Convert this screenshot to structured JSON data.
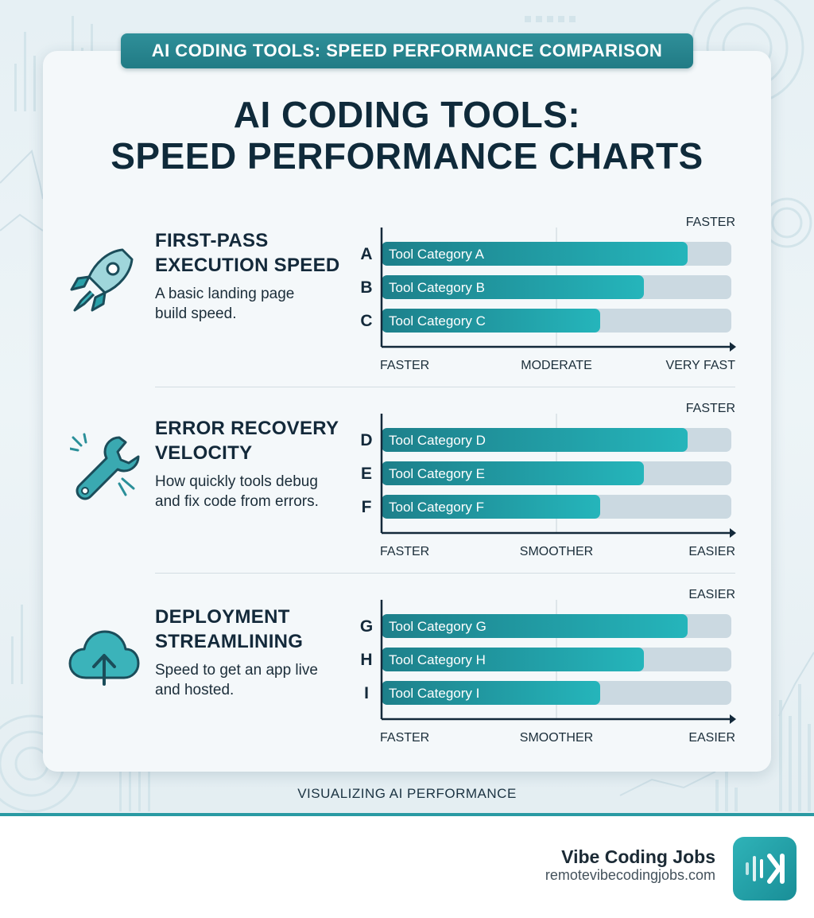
{
  "banner": "AI CODING TOOLS: SPEED PERFORMANCE COMPARISON",
  "title_line1": "AI CODING TOOLS:",
  "title_line2": "SPEED PERFORMANCE CHARTS",
  "sections": [
    {
      "title_line1": "FIRST-PASS",
      "title_line2": "EXECUTION SPEED",
      "desc_line1": "A basic landing page",
      "desc_line2": "build speed.",
      "icon": "rocket-icon"
    },
    {
      "title_line1": "ERROR RECOVERY",
      "title_line2": "VELOCITY",
      "desc_line1": "How quickly tools debug",
      "desc_line2": "and fix code from errors.",
      "icon": "wrench-icon"
    },
    {
      "title_line1": "DEPLOYMENT",
      "title_line2": "STREAMLINING",
      "desc_line1": "Speed to get an app live",
      "desc_line2": "and hosted.",
      "icon": "cloud-upload-icon"
    }
  ],
  "chart_data": [
    {
      "type": "bar",
      "orientation": "horizontal",
      "categories": [
        "A",
        "B",
        "C"
      ],
      "bar_labels": [
        "Tool Category A",
        "Tool Category B",
        "Tool Category C"
      ],
      "values": [
        0.875,
        0.75,
        0.625
      ],
      "top_label": "FASTER",
      "x_tick_labels": [
        "FASTER",
        "MODERATE",
        "VERY FAST"
      ]
    },
    {
      "type": "bar",
      "orientation": "horizontal",
      "categories": [
        "D",
        "E",
        "F"
      ],
      "bar_labels": [
        "Tool Category D",
        "Tool Category E",
        "Tool Category F"
      ],
      "values": [
        0.875,
        0.75,
        0.625
      ],
      "top_label": "FASTER",
      "x_tick_labels": [
        "FASTER",
        "SMOOTHER",
        "EASIER"
      ]
    },
    {
      "type": "bar",
      "orientation": "horizontal",
      "categories": [
        "G",
        "H",
        "I"
      ],
      "bar_labels": [
        "Tool Category G",
        "Tool Category H",
        "Tool Category I"
      ],
      "values": [
        0.875,
        0.75,
        0.625
      ],
      "top_label": "EASIER",
      "x_tick_labels": [
        "FASTER",
        "SMOOTHER",
        "EASIER"
      ]
    }
  ],
  "footer_label": "VISUALIZING AI PERFORMANCE",
  "brand": {
    "name": "Vibe Coding Jobs",
    "url": "remotevibecodingjobs.com",
    "logo_icon": "vibe-logo-icon"
  },
  "colors": {
    "bar_start": "#1d7f8a",
    "bar_end": "#25b5bb",
    "track": "#cbd9e1",
    "axis": "#13293a",
    "banner": "#2a8a94"
  }
}
